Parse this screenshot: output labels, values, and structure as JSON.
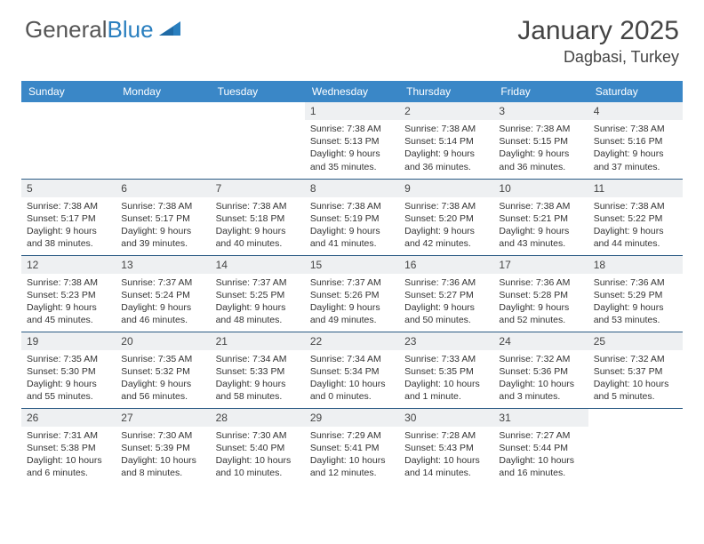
{
  "brand": {
    "part1": "General",
    "part2": "Blue"
  },
  "title": "January 2025",
  "location": "Dagbasi, Turkey",
  "header_bg": "#3a87c7",
  "weekdays": [
    "Sunday",
    "Monday",
    "Tuesday",
    "Wednesday",
    "Thursday",
    "Friday",
    "Saturday"
  ],
  "weeks": [
    [
      {
        "empty": true
      },
      {
        "empty": true
      },
      {
        "empty": true
      },
      {
        "num": "1",
        "sunrise": "7:38 AM",
        "sunset": "5:13 PM",
        "daylight": "9 hours and 35 minutes."
      },
      {
        "num": "2",
        "sunrise": "7:38 AM",
        "sunset": "5:14 PM",
        "daylight": "9 hours and 36 minutes."
      },
      {
        "num": "3",
        "sunrise": "7:38 AM",
        "sunset": "5:15 PM",
        "daylight": "9 hours and 36 minutes."
      },
      {
        "num": "4",
        "sunrise": "7:38 AM",
        "sunset": "5:16 PM",
        "daylight": "9 hours and 37 minutes."
      }
    ],
    [
      {
        "num": "5",
        "sunrise": "7:38 AM",
        "sunset": "5:17 PM",
        "daylight": "9 hours and 38 minutes."
      },
      {
        "num": "6",
        "sunrise": "7:38 AM",
        "sunset": "5:17 PM",
        "daylight": "9 hours and 39 minutes."
      },
      {
        "num": "7",
        "sunrise": "7:38 AM",
        "sunset": "5:18 PM",
        "daylight": "9 hours and 40 minutes."
      },
      {
        "num": "8",
        "sunrise": "7:38 AM",
        "sunset": "5:19 PM",
        "daylight": "9 hours and 41 minutes."
      },
      {
        "num": "9",
        "sunrise": "7:38 AM",
        "sunset": "5:20 PM",
        "daylight": "9 hours and 42 minutes."
      },
      {
        "num": "10",
        "sunrise": "7:38 AM",
        "sunset": "5:21 PM",
        "daylight": "9 hours and 43 minutes."
      },
      {
        "num": "11",
        "sunrise": "7:38 AM",
        "sunset": "5:22 PM",
        "daylight": "9 hours and 44 minutes."
      }
    ],
    [
      {
        "num": "12",
        "sunrise": "7:38 AM",
        "sunset": "5:23 PM",
        "daylight": "9 hours and 45 minutes."
      },
      {
        "num": "13",
        "sunrise": "7:37 AM",
        "sunset": "5:24 PM",
        "daylight": "9 hours and 46 minutes."
      },
      {
        "num": "14",
        "sunrise": "7:37 AM",
        "sunset": "5:25 PM",
        "daylight": "9 hours and 48 minutes."
      },
      {
        "num": "15",
        "sunrise": "7:37 AM",
        "sunset": "5:26 PM",
        "daylight": "9 hours and 49 minutes."
      },
      {
        "num": "16",
        "sunrise": "7:36 AM",
        "sunset": "5:27 PM",
        "daylight": "9 hours and 50 minutes."
      },
      {
        "num": "17",
        "sunrise": "7:36 AM",
        "sunset": "5:28 PM",
        "daylight": "9 hours and 52 minutes."
      },
      {
        "num": "18",
        "sunrise": "7:36 AM",
        "sunset": "5:29 PM",
        "daylight": "9 hours and 53 minutes."
      }
    ],
    [
      {
        "num": "19",
        "sunrise": "7:35 AM",
        "sunset": "5:30 PM",
        "daylight": "9 hours and 55 minutes."
      },
      {
        "num": "20",
        "sunrise": "7:35 AM",
        "sunset": "5:32 PM",
        "daylight": "9 hours and 56 minutes."
      },
      {
        "num": "21",
        "sunrise": "7:34 AM",
        "sunset": "5:33 PM",
        "daylight": "9 hours and 58 minutes."
      },
      {
        "num": "22",
        "sunrise": "7:34 AM",
        "sunset": "5:34 PM",
        "daylight": "10 hours and 0 minutes."
      },
      {
        "num": "23",
        "sunrise": "7:33 AM",
        "sunset": "5:35 PM",
        "daylight": "10 hours and 1 minute."
      },
      {
        "num": "24",
        "sunrise": "7:32 AM",
        "sunset": "5:36 PM",
        "daylight": "10 hours and 3 minutes."
      },
      {
        "num": "25",
        "sunrise": "7:32 AM",
        "sunset": "5:37 PM",
        "daylight": "10 hours and 5 minutes."
      }
    ],
    [
      {
        "num": "26",
        "sunrise": "7:31 AM",
        "sunset": "5:38 PM",
        "daylight": "10 hours and 6 minutes."
      },
      {
        "num": "27",
        "sunrise": "7:30 AM",
        "sunset": "5:39 PM",
        "daylight": "10 hours and 8 minutes."
      },
      {
        "num": "28",
        "sunrise": "7:30 AM",
        "sunset": "5:40 PM",
        "daylight": "10 hours and 10 minutes."
      },
      {
        "num": "29",
        "sunrise": "7:29 AM",
        "sunset": "5:41 PM",
        "daylight": "10 hours and 12 minutes."
      },
      {
        "num": "30",
        "sunrise": "7:28 AM",
        "sunset": "5:43 PM",
        "daylight": "10 hours and 14 minutes."
      },
      {
        "num": "31",
        "sunrise": "7:27 AM",
        "sunset": "5:44 PM",
        "daylight": "10 hours and 16 minutes."
      },
      {
        "empty": true
      }
    ]
  ],
  "labels": {
    "sunrise": "Sunrise: ",
    "sunset": "Sunset: ",
    "daylight": "Daylight: "
  }
}
